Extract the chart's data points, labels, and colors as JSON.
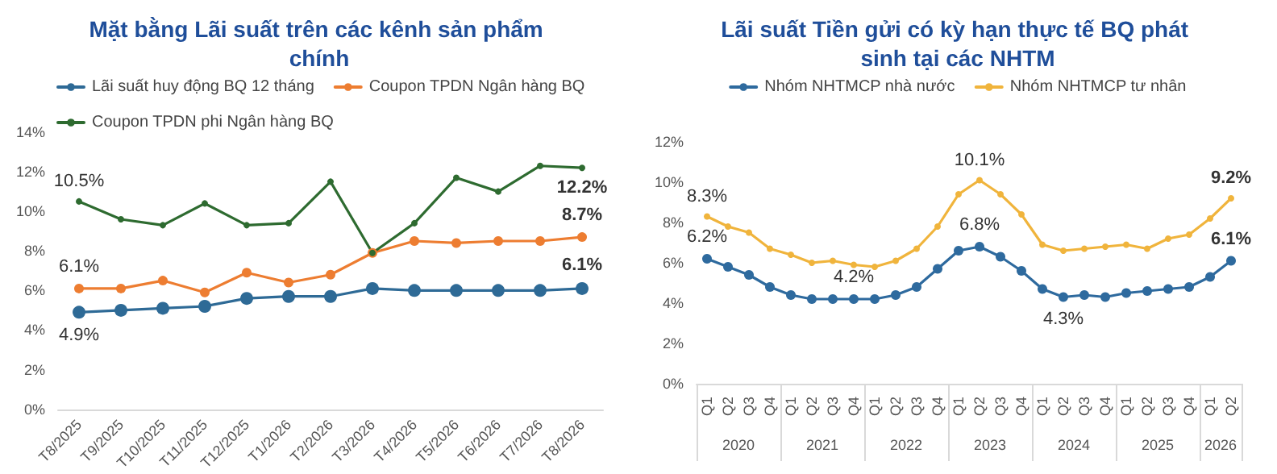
{
  "chart_data": [
    {
      "type": "line",
      "title": "Mặt bằng Lãi suất trên các kênh sản phẩm chính",
      "categories": [
        "T8/2025",
        "T9/2025",
        "T10/2025",
        "T11/2025",
        "T12/2025",
        "T1/2026",
        "T2/2026",
        "T3/2026",
        "T4/2026",
        "T5/2026",
        "T6/2026",
        "T7/2026",
        "T8/2026"
      ],
      "series": [
        {
          "name": "Lãi suất huy động BQ 12 tháng",
          "color": "#2e6a96",
          "values": [
            4.9,
            5.0,
            5.1,
            5.2,
            5.6,
            5.7,
            5.7,
            6.1,
            6.0,
            6.0,
            6.0,
            6.0,
            6.1
          ],
          "value_labels": [
            "4.9%",
            null,
            null,
            null,
            null,
            null,
            null,
            null,
            null,
            null,
            null,
            null,
            "6.1%"
          ]
        },
        {
          "name": "Coupon TPDN Ngân hàng BQ",
          "color": "#ed7d31",
          "values": [
            6.1,
            6.1,
            6.5,
            5.9,
            6.9,
            6.4,
            6.8,
            7.9,
            8.5,
            8.4,
            8.5,
            8.5,
            8.7
          ],
          "value_labels": [
            "6.1%",
            null,
            null,
            null,
            null,
            null,
            null,
            null,
            null,
            null,
            null,
            null,
            "8.7%"
          ]
        },
        {
          "name": "Coupon TPDN phi Ngân hàng BQ",
          "color": "#2e6b30",
          "values": [
            10.5,
            9.6,
            9.3,
            10.4,
            9.3,
            9.4,
            11.5,
            7.9,
            9.4,
            11.7,
            11.0,
            12.3,
            12.2
          ],
          "value_labels": [
            "10.5%",
            null,
            null,
            null,
            null,
            null,
            null,
            null,
            null,
            null,
            null,
            null,
            "12.2%"
          ]
        }
      ],
      "ylim": [
        0,
        14
      ],
      "yticks": [
        {
          "value": 0,
          "label": "0%"
        },
        {
          "value": 2,
          "label": "2%"
        },
        {
          "value": 4,
          "label": "4%"
        },
        {
          "value": 6,
          "label": "6%"
        },
        {
          "value": 8,
          "label": "8%"
        },
        {
          "value": 10,
          "label": "10%"
        },
        {
          "value": 12,
          "label": "12%"
        },
        {
          "value": 14,
          "label": "14%"
        }
      ],
      "grid": false,
      "legend": "top left",
      "marker": "circle",
      "line_style": "solid"
    },
    {
      "type": "line",
      "title": "Lãi suất Tiền gửi có kỳ hạn thực tế BQ phát sinh tại các NHTM",
      "categories": [
        "Q1",
        "Q2",
        "Q3",
        "Q4",
        "Q1",
        "Q2",
        "Q3",
        "Q4",
        "Q1",
        "Q2",
        "Q3",
        "Q4",
        "Q1",
        "Q2",
        "Q3",
        "Q4",
        "Q1",
        "Q2",
        "Q3",
        "Q4",
        "Q1",
        "Q2",
        "Q3",
        "Q4",
        "Q1",
        "Q2"
      ],
      "annotations": [
        "2020",
        "2021",
        "2022",
        "2023",
        "2024",
        "2025",
        "2026"
      ],
      "series": [
        {
          "name": "Nhóm NHTMCP nhà nước",
          "color": "#2e6a9e",
          "values": [
            6.2,
            5.8,
            5.4,
            4.8,
            4.4,
            4.2,
            4.2,
            4.2,
            4.2,
            4.4,
            4.8,
            5.7,
            6.6,
            6.8,
            6.3,
            5.6,
            4.7,
            4.3,
            4.4,
            4.3,
            4.5,
            4.6,
            4.7,
            4.8,
            5.3,
            6.1
          ],
          "value_labels": [
            "6.2%",
            null,
            null,
            null,
            null,
            null,
            null,
            "4.2%",
            null,
            null,
            null,
            null,
            null,
            "6.8%",
            null,
            null,
            null,
            "4.3%",
            null,
            null,
            null,
            null,
            null,
            null,
            null,
            "6.1%"
          ]
        },
        {
          "name": "Nhóm NHTMCP tư nhân",
          "color": "#f0b43c",
          "values": [
            8.3,
            7.8,
            7.5,
            6.7,
            6.4,
            6.0,
            6.1,
            5.9,
            5.8,
            6.1,
            6.7,
            7.8,
            9.4,
            10.1,
            9.4,
            8.4,
            6.9,
            6.6,
            6.7,
            6.8,
            6.9,
            6.7,
            7.2,
            7.4,
            8.2,
            9.2
          ],
          "value_labels": [
            "8.3%",
            null,
            null,
            null,
            null,
            null,
            null,
            null,
            null,
            null,
            null,
            null,
            null,
            "10.1%",
            null,
            null,
            null,
            null,
            null,
            null,
            null,
            null,
            null,
            null,
            null,
            "9.2%"
          ]
        }
      ],
      "ylim": [
        0,
        12
      ],
      "yticks": [
        {
          "value": 0,
          "label": "0%"
        },
        {
          "value": 2,
          "label": "2%"
        },
        {
          "value": 4,
          "label": "4%"
        },
        {
          "value": 6,
          "label": "6%"
        },
        {
          "value": 8,
          "label": "8%"
        },
        {
          "value": 10,
          "label": "10%"
        },
        {
          "value": 12,
          "label": "12%"
        }
      ],
      "grid": false,
      "legend": "top",
      "marker": "circle",
      "line_style": "solid"
    }
  ]
}
